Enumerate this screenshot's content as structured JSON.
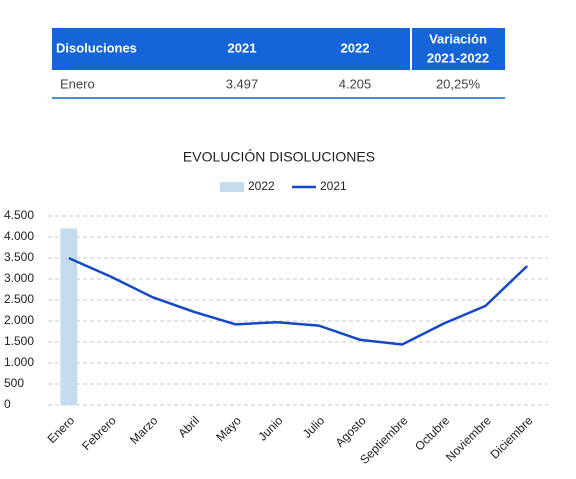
{
  "table": {
    "header": [
      "Disoluciones",
      "2021",
      "2022",
      [
        "Variación",
        "2021-2022"
      ]
    ],
    "rows": [
      [
        "Enero",
        "3.497",
        "4.205",
        "20,25%"
      ]
    ]
  },
  "chart_data": {
    "type": "line",
    "title": "EVOLUCIÓN DISOLUCIONES",
    "categories": [
      "Enero",
      "Febrero",
      "Marzo",
      "Abril",
      "Mayo",
      "Junio",
      "Julio",
      "Agosto",
      "Septiembre",
      "Octubre",
      "Noviembre",
      "Diciembre"
    ],
    "series": [
      {
        "name": "2022",
        "type": "bar",
        "color": "#c5dcee",
        "values": [
          4205,
          null,
          null,
          null,
          null,
          null,
          null,
          null,
          null,
          null,
          null,
          null
        ]
      },
      {
        "name": "2021",
        "type": "line",
        "color": "#1448c8",
        "values": [
          3497,
          3060,
          2570,
          2220,
          1920,
          1970,
          1890,
          1550,
          1440,
          1940,
          2360,
          3310
        ]
      }
    ],
    "ylim": [
      0,
      4500
    ],
    "yticks": [
      0,
      500,
      {
        "value": 1000,
        "label": "1.000"
      },
      {
        "value": 1500,
        "label": "1.500"
      },
      {
        "value": 2000,
        "label": "2.000"
      },
      {
        "value": 2500,
        "label": "2.500"
      },
      {
        "value": 3000,
        "label": "3.000"
      },
      {
        "value": 3500,
        "label": "3.500"
      },
      {
        "value": 4000,
        "label": "4.000"
      },
      {
        "value": 4500,
        "label": "4.500"
      }
    ],
    "grid": true,
    "legend": "top"
  }
}
